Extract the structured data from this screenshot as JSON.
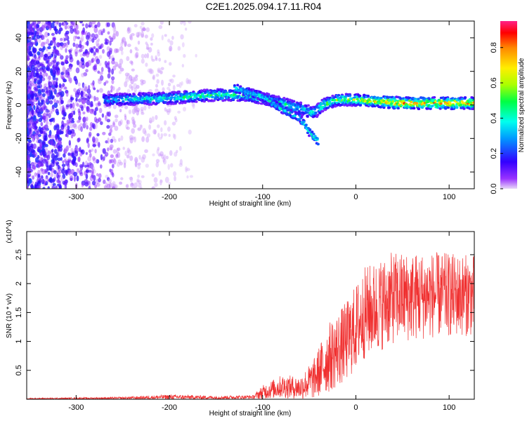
{
  "figure_title": "C2E1.2025.094.17.11.R04",
  "colors": {
    "axis": "#000000",
    "snr_line": "#f03030",
    "background": "#ffffff"
  },
  "chart_data": [
    {
      "type": "heatmap",
      "name": "spectrogram",
      "title": "C2E1.2025.094.17.11.R04",
      "xlabel": "Height of straight line (km)",
      "ylabel": "Frequency (Hz)",
      "xlim": [
        -353,
        127
      ],
      "ylim": [
        -50,
        50
      ],
      "xticks": [
        -300,
        -200,
        -100,
        0,
        100
      ],
      "yticks": [
        -40,
        -20,
        0,
        20,
        40
      ],
      "colorbar": {
        "label": "Normalized spectral amplitude",
        "range": [
          0,
          0.95
        ],
        "ticks": [
          0.0,
          0.2,
          0.4,
          0.6,
          0.8
        ]
      },
      "main_track": {
        "description": "dominant frequency ridge",
        "points": [
          {
            "x": -270,
            "y": 3
          },
          {
            "x": -200,
            "y": 4
          },
          {
            "x": -150,
            "y": 6
          },
          {
            "x": -120,
            "y": 6
          },
          {
            "x": -100,
            "y": 4
          },
          {
            "x": -80,
            "y": 1
          },
          {
            "x": -60,
            "y": -2
          },
          {
            "x": -45,
            "y": -5
          },
          {
            "x": -35,
            "y": 0
          },
          {
            "x": -20,
            "y": 3
          },
          {
            "x": 0,
            "y": 3
          },
          {
            "x": 50,
            "y": 1
          },
          {
            "x": 127,
            "y": 1
          }
        ],
        "amplitude": [
          {
            "x": -270,
            "a": 0.4
          },
          {
            "x": -200,
            "a": 0.5
          },
          {
            "x": -150,
            "a": 0.55
          },
          {
            "x": -100,
            "a": 0.55
          },
          {
            "x": -50,
            "a": 0.5
          },
          {
            "x": 0,
            "a": 0.7
          },
          {
            "x": 50,
            "a": 0.9
          },
          {
            "x": 127,
            "a": 0.85
          }
        ]
      },
      "branch_track": {
        "description": "secondary descending branch",
        "points": [
          {
            "x": -130,
            "y": 10
          },
          {
            "x": -100,
            "y": 5
          },
          {
            "x": -80,
            "y": -2
          },
          {
            "x": -60,
            "y": -8
          },
          {
            "x": -50,
            "y": -16
          },
          {
            "x": -40,
            "y": -22
          }
        ]
      }
    },
    {
      "type": "line",
      "name": "snr",
      "xlabel": "Height of straight line (km)",
      "ylabel": "SNR (10 * v/v)",
      "y_multiplier": "(x10^4)",
      "xlim": [
        -353,
        127
      ],
      "ylim": [
        0,
        2.9
      ],
      "xticks": [
        -300,
        -200,
        -100,
        0,
        100
      ],
      "yticks": [
        0.5,
        1.0,
        1.5,
        2.0,
        2.5
      ],
      "series": [
        {
          "name": "SNR",
          "envelope": [
            {
              "x": -353,
              "mean": 0.01,
              "spread": 0.01
            },
            {
              "x": -250,
              "mean": 0.02,
              "spread": 0.02
            },
            {
              "x": -200,
              "mean": 0.04,
              "spread": 0.04
            },
            {
              "x": -150,
              "mean": 0.03,
              "spread": 0.03
            },
            {
              "x": -110,
              "mean": 0.04,
              "spread": 0.03
            },
            {
              "x": -100,
              "mean": 0.12,
              "spread": 0.12
            },
            {
              "x": -80,
              "mean": 0.22,
              "spread": 0.2
            },
            {
              "x": -60,
              "mean": 0.2,
              "spread": 0.2
            },
            {
              "x": -45,
              "mean": 0.35,
              "spread": 0.35
            },
            {
              "x": -30,
              "mean": 0.7,
              "spread": 0.6
            },
            {
              "x": -10,
              "mean": 1.0,
              "spread": 0.7
            },
            {
              "x": 10,
              "mean": 1.5,
              "spread": 0.8
            },
            {
              "x": 40,
              "mean": 1.75,
              "spread": 0.8
            },
            {
              "x": 80,
              "mean": 1.8,
              "spread": 0.75
            },
            {
              "x": 127,
              "mean": 1.8,
              "spread": 0.7
            }
          ]
        }
      ]
    }
  ]
}
